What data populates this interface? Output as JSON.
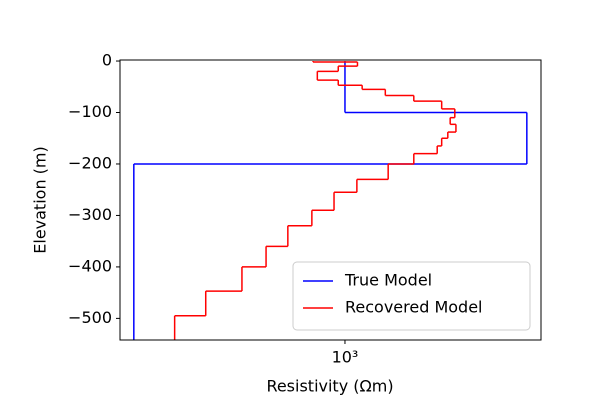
{
  "chart_data": {
    "type": "step",
    "xlabel": "Resistivity (Ωm)",
    "ylabel": "Elevation (m)",
    "xscale": "log",
    "xlim": [
      180,
      4456
    ],
    "ylim": [
      -542,
      2
    ],
    "xticks": [
      {
        "value": 1000,
        "label": "10³"
      }
    ],
    "yticks": [
      0,
      {
        "value": -100,
        "label": "−100"
      },
      {
        "value": -200,
        "label": "−200"
      },
      {
        "value": -300,
        "label": "−300"
      },
      {
        "value": -400,
        "label": "−400"
      },
      {
        "value": -500,
        "label": "−500"
      }
    ],
    "legend": "lower right",
    "series": [
      {
        "name": "True Model",
        "color": "#0000ff",
        "depths": [
          0,
          -100,
          -200,
          -550
        ],
        "values": [
          1000,
          4000,
          200
        ]
      },
      {
        "name": "Recovered Model",
        "color": "#ff0000",
        "depths": [
          0,
          -2,
          -10,
          -20,
          -37,
          -47,
          -55,
          -67,
          -78,
          -93,
          -110,
          -123,
          -138,
          -150,
          -165,
          -180,
          -200,
          -230,
          -255,
          -290,
          -320,
          -360,
          -400,
          -447,
          -495,
          -550
        ],
        "values": [
          784,
          1100,
          950,
          810,
          950,
          1140,
          1360,
          1690,
          2090,
          2310,
          2230,
          2330,
          2190,
          2090,
          2020,
          1690,
          1390,
          1095,
          920,
          777,
          647,
          548,
          456,
          346,
          273
        ]
      }
    ]
  }
}
